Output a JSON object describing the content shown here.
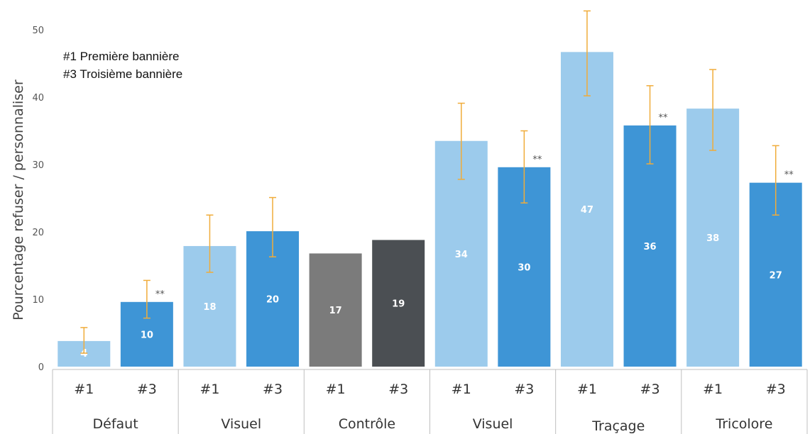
{
  "chart_data": {
    "type": "bar",
    "ylabel": "Pourcentage refuser / personnaliser",
    "ylim": [
      0,
      50
    ],
    "yticks": [
      0,
      10,
      20,
      30,
      40,
      50
    ],
    "legend_notes": [
      "#1 Première bannière",
      "#3 Troisième bannière"
    ],
    "groups": [
      "Défaut",
      "Visuel",
      "Contrôle",
      "Visuel",
      "Traçage",
      "Tricolore"
    ],
    "categories": [
      "#1",
      "#3",
      "#1",
      "#3",
      "#1",
      "#3",
      "#1",
      "#3",
      "#1",
      "#3",
      "#1",
      "#3"
    ],
    "values": [
      3.8,
      9.6,
      17.9,
      20.1,
      16.8,
      18.8,
      33.5,
      29.6,
      46.7,
      35.8,
      38.3,
      27.3
    ],
    "data_labels": [
      "4",
      "10",
      "18",
      "20",
      "17",
      "19",
      "34",
      "30",
      "47",
      "36",
      "38",
      "27"
    ],
    "error_low": [
      2.0,
      7.2,
      14.0,
      16.3,
      null,
      null,
      27.8,
      24.3,
      40.2,
      30.1,
      32.1,
      22.5
    ],
    "error_high": [
      5.8,
      12.8,
      22.5,
      25.1,
      null,
      null,
      39.1,
      35.0,
      52.8,
      41.7,
      44.1,
      32.8
    ],
    "significance": [
      "",
      "**",
      "",
      "",
      "",
      "",
      "",
      "**",
      "",
      "**",
      "",
      "**"
    ],
    "colors": {
      "first_banner": "#9ccbec",
      "third_banner": "#3e95d6",
      "control_first": "#7b7b7b",
      "control_third": "#4b4f53",
      "error_bar": "#f0ac3a"
    }
  }
}
